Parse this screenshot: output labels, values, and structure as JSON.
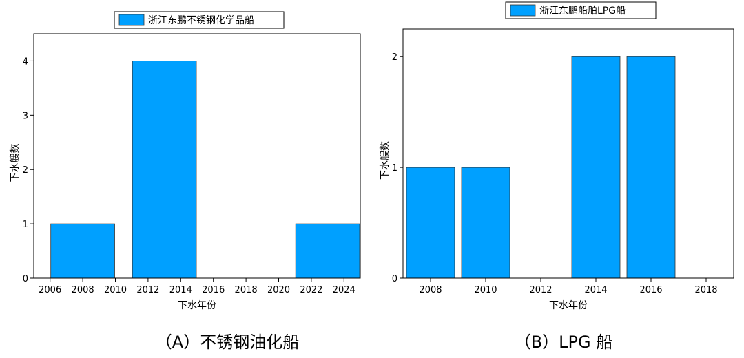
{
  "chart_data": [
    {
      "type": "bar",
      "title": "",
      "legend": {
        "label": "浙江东鹏不锈钢化学品船",
        "placement": "top-center"
      },
      "xlabel": "下水年份",
      "ylabel": "下水艘数",
      "xlim": [
        2005,
        2025
      ],
      "ylim": [
        0,
        4.5
      ],
      "xticks": [
        2006,
        2008,
        2010,
        2012,
        2014,
        2016,
        2018,
        2020,
        2022,
        2024
      ],
      "yticks": [
        0,
        1,
        2,
        3,
        4
      ],
      "bar_width": 4,
      "x": [
        2008,
        2013,
        2018,
        2023
      ],
      "values": [
        1,
        4,
        0,
        1
      ],
      "color": "#00a0ff",
      "caption": "（A）不锈钢油化船"
    },
    {
      "type": "bar",
      "title": "",
      "legend": {
        "label": "浙江东鹏船舶LPG船",
        "placement": "top-center"
      },
      "xlabel": "下水年份",
      "ylabel": "下水艘数",
      "xlim": [
        2007,
        2019
      ],
      "ylim": [
        0,
        2.25
      ],
      "xticks": [
        2008,
        2010,
        2012,
        2014,
        2016,
        2018
      ],
      "yticks": [
        0,
        1,
        2
      ],
      "bar_width": 1.8,
      "x": [
        2008,
        2010,
        2012,
        2014,
        2016,
        2018
      ],
      "values": [
        1,
        1,
        0,
        2,
        2,
        0
      ],
      "color": "#00a0ff",
      "caption": "（B）LPG 船"
    }
  ]
}
